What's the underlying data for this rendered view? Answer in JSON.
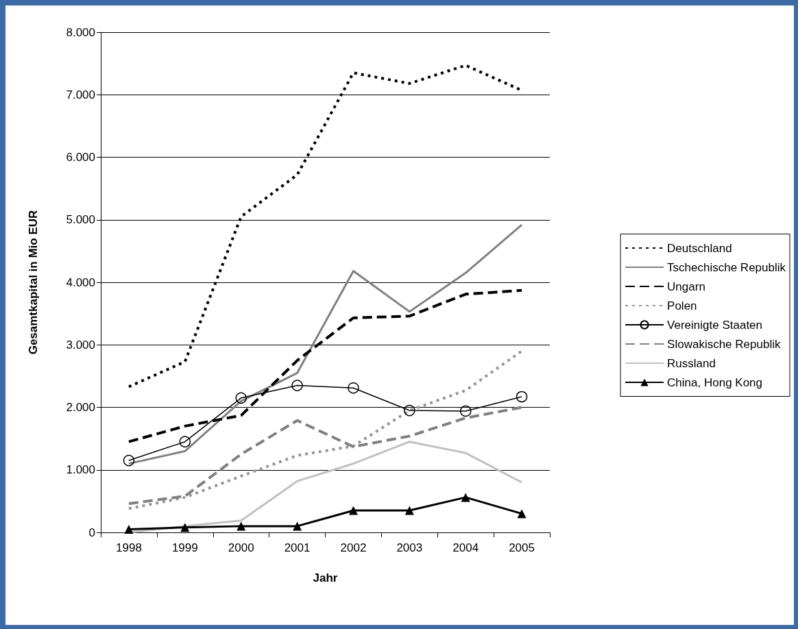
{
  "chart_data": {
    "type": "line",
    "xlabel": "Jahr",
    "ylabel": "Gesamtkapital in Mio EUR",
    "categories": [
      "1998",
      "1999",
      "2000",
      "2001",
      "2002",
      "2003",
      "2004",
      "2005"
    ],
    "series": [
      {
        "name": "Deutschland",
        "color": "#000000",
        "line_style": "dotted",
        "values": [
          2330,
          2730,
          5050,
          5720,
          7350,
          7180,
          7470,
          7070
        ]
      },
      {
        "name": "Tschechische Republik",
        "color": "#808080",
        "line_style": "solid",
        "values": [
          1100,
          1300,
          2100,
          2550,
          4180,
          3530,
          4150,
          4920
        ]
      },
      {
        "name": "Ungarn",
        "color": "#000000",
        "line_style": "dashed",
        "values": [
          1450,
          1700,
          1870,
          2750,
          3430,
          3460,
          3810,
          3870
        ]
      },
      {
        "name": "Polen",
        "color": "#969696",
        "line_style": "dotted",
        "values": [
          380,
          560,
          900,
          1230,
          1380,
          1950,
          2270,
          2900
        ]
      },
      {
        "name": "Vereinigte Staaten",
        "color": "#000000",
        "line_style": "solid",
        "marker": "circle",
        "values": [
          1150,
          1450,
          2150,
          2350,
          2310,
          1950,
          1940,
          2170
        ]
      },
      {
        "name": "Slowakische Republik",
        "color": "#808080",
        "line_style": "dashed",
        "values": [
          460,
          580,
          1250,
          1790,
          1370,
          1540,
          1830,
          2000
        ]
      },
      {
        "name": "Russland",
        "color": "#c0c0c0",
        "line_style": "solid",
        "values": [
          0,
          100,
          190,
          820,
          1100,
          1450,
          1270,
          800
        ]
      },
      {
        "name": "China, Hong Kong",
        "color": "#000000",
        "line_style": "solid",
        "marker": "triangle",
        "values": [
          50,
          80,
          100,
          100,
          350,
          350,
          560,
          300
        ]
      }
    ],
    "ylim": [
      0,
      8000
    ],
    "yticks": [
      {
        "value": 0,
        "label": "0"
      },
      {
        "value": 1000,
        "label": "1.000"
      },
      {
        "value": 2000,
        "label": "2.000"
      },
      {
        "value": 3000,
        "label": "3.000"
      },
      {
        "value": 4000,
        "label": "4.000"
      },
      {
        "value": 5000,
        "label": "5.000"
      },
      {
        "value": 6000,
        "label": "6.000"
      },
      {
        "value": 7000,
        "label": "7.000"
      },
      {
        "value": 8000,
        "label": "8.000"
      }
    ],
    "grid": "y",
    "legend": "right"
  }
}
